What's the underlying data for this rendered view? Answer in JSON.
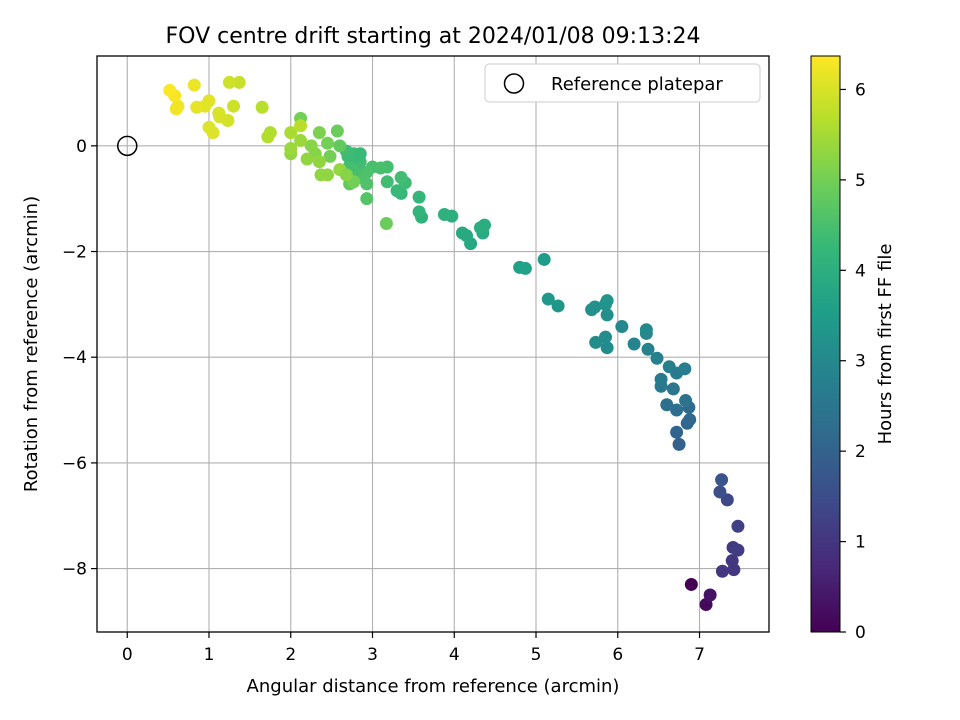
{
  "chart_data": {
    "type": "scatter",
    "title": "FOV centre drift starting at 2024/01/08 09:13:24",
    "xlabel": "Angular distance from reference (arcmin)",
    "ylabel": "Rotation from reference (arcmin)",
    "xlim": [
      -0.37,
      7.85
    ],
    "ylim": [
      -9.2,
      1.7
    ],
    "xticks": [
      0,
      1,
      2,
      3,
      4,
      5,
      6,
      7
    ],
    "yticks": [
      -8,
      -6,
      -4,
      -2,
      0
    ],
    "grid": true,
    "legend": {
      "position": "top-right",
      "entries": [
        "Reference platepar"
      ]
    },
    "reference_point": {
      "x": 0,
      "y": 0
    },
    "colorbar": {
      "label": "Hours from first FF file",
      "min": 0,
      "max": 6.37,
      "ticks": [
        0,
        1,
        2,
        3,
        4,
        5,
        6
      ],
      "colormap": "viridis",
      "stops": [
        "#440154",
        "#482878",
        "#3e4989",
        "#31688e",
        "#26828e",
        "#1f9e89",
        "#35b779",
        "#6ece58",
        "#b5de2b",
        "#fde725"
      ]
    },
    "points": [
      {
        "x": 6.9,
        "y": -8.3,
        "h": 0.0
      },
      {
        "x": 7.08,
        "y": -8.68,
        "h": 0.15
      },
      {
        "x": 7.13,
        "y": -8.5,
        "h": 0.3
      },
      {
        "x": 7.28,
        "y": -8.05,
        "h": 1.0
      },
      {
        "x": 7.42,
        "y": -8.02,
        "h": 1.0
      },
      {
        "x": 7.4,
        "y": -7.85,
        "h": 1.05
      },
      {
        "x": 7.41,
        "y": -7.6,
        "h": 1.1
      },
      {
        "x": 7.47,
        "y": -7.65,
        "h": 1.15
      },
      {
        "x": 7.47,
        "y": -7.2,
        "h": 1.25
      },
      {
        "x": 7.34,
        "y": -6.7,
        "h": 1.4
      },
      {
        "x": 7.25,
        "y": -6.55,
        "h": 1.55
      },
      {
        "x": 7.27,
        "y": -6.32,
        "h": 1.7
      },
      {
        "x": 6.75,
        "y": -5.65,
        "h": 2.0
      },
      {
        "x": 6.72,
        "y": -5.42,
        "h": 2.05
      },
      {
        "x": 6.85,
        "y": -5.25,
        "h": 2.1
      },
      {
        "x": 6.88,
        "y": -5.18,
        "h": 2.15
      },
      {
        "x": 6.87,
        "y": -4.95,
        "h": 2.2
      },
      {
        "x": 6.72,
        "y": -5.0,
        "h": 2.3
      },
      {
        "x": 6.6,
        "y": -4.9,
        "h": 2.35
      },
      {
        "x": 6.83,
        "y": -4.82,
        "h": 2.4
      },
      {
        "x": 6.68,
        "y": -4.6,
        "h": 2.5
      },
      {
        "x": 6.53,
        "y": -4.55,
        "h": 2.55
      },
      {
        "x": 6.53,
        "y": -4.42,
        "h": 2.6
      },
      {
        "x": 6.72,
        "y": -4.3,
        "h": 2.65
      },
      {
        "x": 6.82,
        "y": -4.22,
        "h": 2.7
      },
      {
        "x": 6.63,
        "y": -4.18,
        "h": 2.75
      },
      {
        "x": 6.48,
        "y": -4.02,
        "h": 2.8
      },
      {
        "x": 6.37,
        "y": -3.85,
        "h": 2.85
      },
      {
        "x": 6.2,
        "y": -3.75,
        "h": 2.9
      },
      {
        "x": 6.35,
        "y": -3.55,
        "h": 2.95
      },
      {
        "x": 6.35,
        "y": -3.48,
        "h": 3.0
      },
      {
        "x": 6.05,
        "y": -3.42,
        "h": 3.0
      },
      {
        "x": 5.87,
        "y": -3.82,
        "h": 3.05
      },
      {
        "x": 5.73,
        "y": -3.72,
        "h": 3.1
      },
      {
        "x": 5.85,
        "y": -3.62,
        "h": 3.1
      },
      {
        "x": 5.87,
        "y": -3.2,
        "h": 3.15
      },
      {
        "x": 5.68,
        "y": -3.1,
        "h": 3.2
      },
      {
        "x": 5.72,
        "y": -3.05,
        "h": 3.2
      },
      {
        "x": 5.85,
        "y": -3.0,
        "h": 3.25
      },
      {
        "x": 5.87,
        "y": -2.93,
        "h": 3.3
      },
      {
        "x": 5.27,
        "y": -3.03,
        "h": 3.35
      },
      {
        "x": 5.15,
        "y": -2.9,
        "h": 3.4
      },
      {
        "x": 5.1,
        "y": -2.15,
        "h": 3.5
      },
      {
        "x": 4.8,
        "y": -2.3,
        "h": 3.6
      },
      {
        "x": 4.87,
        "y": -2.32,
        "h": 3.65
      },
      {
        "x": 4.2,
        "y": -1.85,
        "h": 3.8
      },
      {
        "x": 4.1,
        "y": -1.65,
        "h": 3.85
      },
      {
        "x": 4.15,
        "y": -1.7,
        "h": 3.85
      },
      {
        "x": 4.35,
        "y": -1.65,
        "h": 3.9
      },
      {
        "x": 4.37,
        "y": -1.5,
        "h": 3.95
      },
      {
        "x": 4.32,
        "y": -1.55,
        "h": 3.95
      },
      {
        "x": 3.97,
        "y": -1.33,
        "h": 4.0
      },
      {
        "x": 3.88,
        "y": -1.3,
        "h": 4.05
      },
      {
        "x": 3.6,
        "y": -1.35,
        "h": 4.1
      },
      {
        "x": 3.57,
        "y": -1.25,
        "h": 4.15
      },
      {
        "x": 3.57,
        "y": -0.97,
        "h": 4.2
      },
      {
        "x": 3.17,
        "y": -1.47,
        "h": 4.9
      },
      {
        "x": 3.35,
        "y": -0.9,
        "h": 4.25
      },
      {
        "x": 3.3,
        "y": -0.85,
        "h": 4.3
      },
      {
        "x": 3.4,
        "y": -0.7,
        "h": 4.35
      },
      {
        "x": 3.35,
        "y": -0.6,
        "h": 4.4
      },
      {
        "x": 3.18,
        "y": -0.68,
        "h": 4.4
      },
      {
        "x": 3.18,
        "y": -0.4,
        "h": 4.45
      },
      {
        "x": 3.1,
        "y": -0.42,
        "h": 4.5
      },
      {
        "x": 3.0,
        "y": -0.4,
        "h": 4.5
      },
      {
        "x": 2.93,
        "y": -0.5,
        "h": 4.55
      },
      {
        "x": 2.93,
        "y": -0.72,
        "h": 4.6
      },
      {
        "x": 2.93,
        "y": -1.0,
        "h": 4.65
      },
      {
        "x": 2.83,
        "y": -0.6,
        "h": 4.6
      },
      {
        "x": 2.8,
        "y": -0.45,
        "h": 4.5
      },
      {
        "x": 2.72,
        "y": -0.38,
        "h": 4.45
      },
      {
        "x": 2.85,
        "y": -0.3,
        "h": 4.4
      },
      {
        "x": 2.77,
        "y": -0.15,
        "h": 4.35
      },
      {
        "x": 2.85,
        "y": -0.15,
        "h": 4.3
      },
      {
        "x": 2.8,
        "y": -0.2,
        "h": 4.3
      },
      {
        "x": 2.7,
        "y": -0.2,
        "h": 4.35
      },
      {
        "x": 2.68,
        "y": -0.1,
        "h": 4.4
      },
      {
        "x": 2.6,
        "y": 0.0,
        "h": 4.8
      },
      {
        "x": 2.57,
        "y": 0.28,
        "h": 4.9
      },
      {
        "x": 2.45,
        "y": 0.05,
        "h": 5.0
      },
      {
        "x": 2.48,
        "y": -0.2,
        "h": 5.0
      },
      {
        "x": 2.35,
        "y": 0.25,
        "h": 5.1
      },
      {
        "x": 2.25,
        "y": 0.0,
        "h": 5.2
      },
      {
        "x": 2.3,
        "y": -0.15,
        "h": 5.2
      },
      {
        "x": 2.35,
        "y": -0.3,
        "h": 5.3
      },
      {
        "x": 2.37,
        "y": -0.55,
        "h": 5.3
      },
      {
        "x": 2.45,
        "y": -0.55,
        "h": 5.3
      },
      {
        "x": 2.6,
        "y": -0.45,
        "h": 5.35
      },
      {
        "x": 2.72,
        "y": -0.72,
        "h": 4.8
      },
      {
        "x": 2.77,
        "y": -0.68,
        "h": 5.0
      },
      {
        "x": 2.68,
        "y": -0.55,
        "h": 5.2
      },
      {
        "x": 2.2,
        "y": -0.25,
        "h": 5.3
      },
      {
        "x": 2.12,
        "y": 0.1,
        "h": 5.4
      },
      {
        "x": 2.12,
        "y": 0.52,
        "h": 5.0
      },
      {
        "x": 2.0,
        "y": -0.15,
        "h": 5.3
      },
      {
        "x": 2.0,
        "y": -0.05,
        "h": 5.4
      },
      {
        "x": 2.0,
        "y": 0.25,
        "h": 5.55
      },
      {
        "x": 2.12,
        "y": 0.38,
        "h": 5.7
      },
      {
        "x": 1.75,
        "y": 0.25,
        "h": 5.6
      },
      {
        "x": 1.72,
        "y": 0.17,
        "h": 5.65
      },
      {
        "x": 1.65,
        "y": 0.73,
        "h": 5.7
      },
      {
        "x": 1.37,
        "y": 1.2,
        "h": 5.85
      },
      {
        "x": 1.25,
        "y": 1.2,
        "h": 5.9
      },
      {
        "x": 1.3,
        "y": 0.75,
        "h": 5.9
      },
      {
        "x": 1.23,
        "y": 0.48,
        "h": 5.95
      },
      {
        "x": 1.13,
        "y": 0.55,
        "h": 6.0
      },
      {
        "x": 1.12,
        "y": 0.62,
        "h": 6.0
      },
      {
        "x": 1.0,
        "y": 0.35,
        "h": 6.05
      },
      {
        "x": 1.05,
        "y": 0.25,
        "h": 6.05
      },
      {
        "x": 1.0,
        "y": 0.85,
        "h": 6.1
      },
      {
        "x": 0.95,
        "y": 0.75,
        "h": 6.1
      },
      {
        "x": 0.85,
        "y": 0.73,
        "h": 6.15
      },
      {
        "x": 0.82,
        "y": 1.15,
        "h": 6.2
      },
      {
        "x": 0.62,
        "y": 0.75,
        "h": 6.25
      },
      {
        "x": 0.6,
        "y": 0.7,
        "h": 6.25
      },
      {
        "x": 0.58,
        "y": 0.95,
        "h": 6.3
      },
      {
        "x": 0.52,
        "y": 1.05,
        "h": 6.35
      }
    ]
  }
}
